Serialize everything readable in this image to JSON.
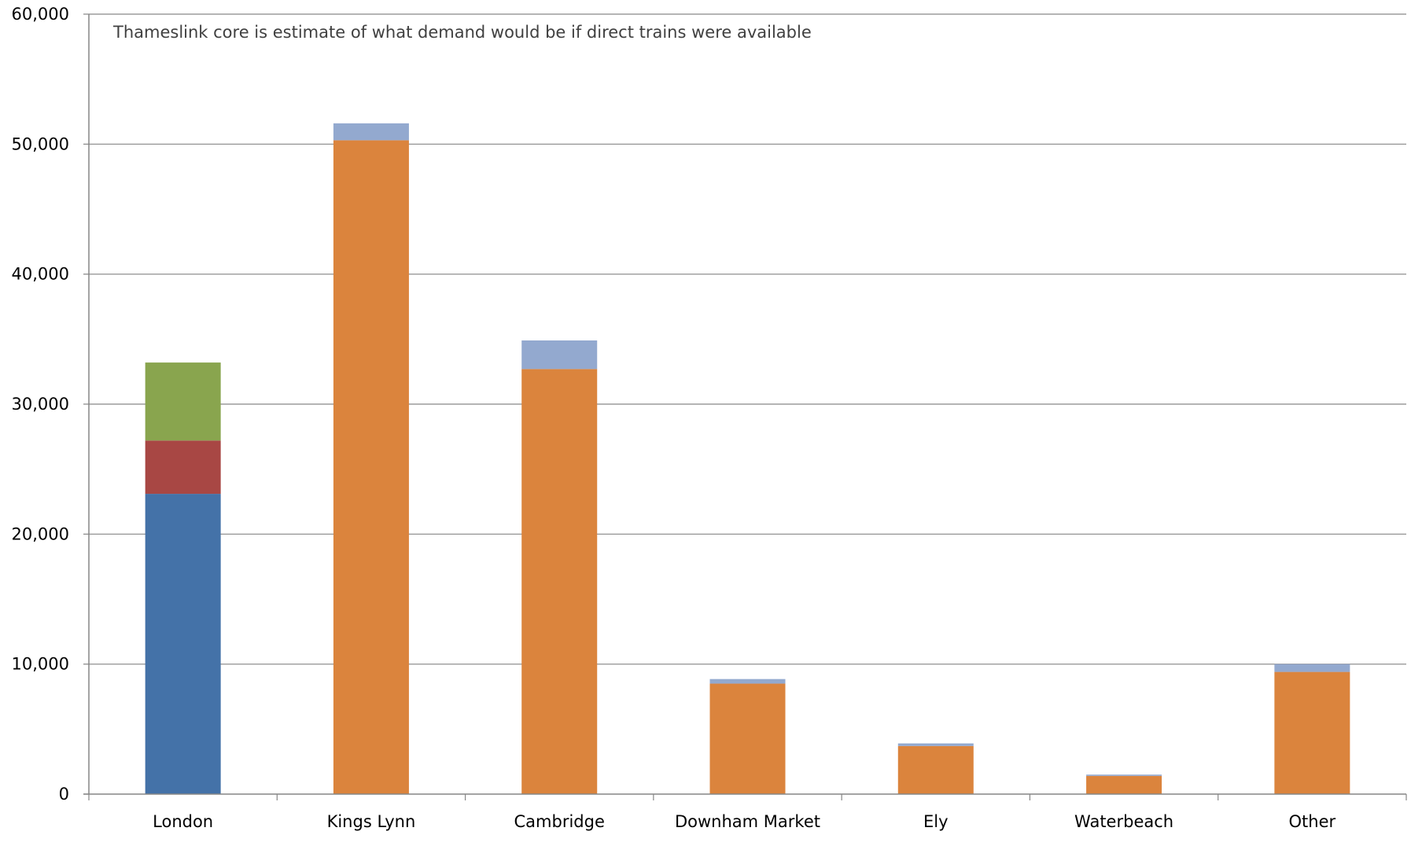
{
  "chart_data": {
    "type": "bar",
    "stacked": true,
    "annotation": "Thameslink core is estimate of what demand would be if direct trains were available",
    "categories": [
      "London",
      "Kings Lynn",
      "Cambridge",
      "Downham Market",
      "Ely",
      "Waterbeach",
      "Other"
    ],
    "series": [
      {
        "color": "#4472a8",
        "values": [
          23100,
          0,
          0,
          0,
          0,
          0,
          0
        ]
      },
      {
        "color": "#a84744",
        "values": [
          4100,
          0,
          0,
          0,
          0,
          0,
          0
        ]
      },
      {
        "color": "#89a54e",
        "values": [
          6000,
          0,
          0,
          0,
          0,
          0,
          0
        ]
      },
      {
        "color": "#db843d",
        "values": [
          0,
          50300,
          32700,
          8500,
          3700,
          1400,
          9400
        ]
      },
      {
        "color": "#93a9cf",
        "values": [
          0,
          1300,
          2200,
          350,
          200,
          100,
          600
        ]
      }
    ],
    "yticks": [
      "0",
      "10,000",
      "20,000",
      "30,000",
      "40,000",
      "50,000",
      "60,000"
    ],
    "ylim": [
      0,
      60000
    ],
    "grid": true,
    "legend": "none"
  }
}
